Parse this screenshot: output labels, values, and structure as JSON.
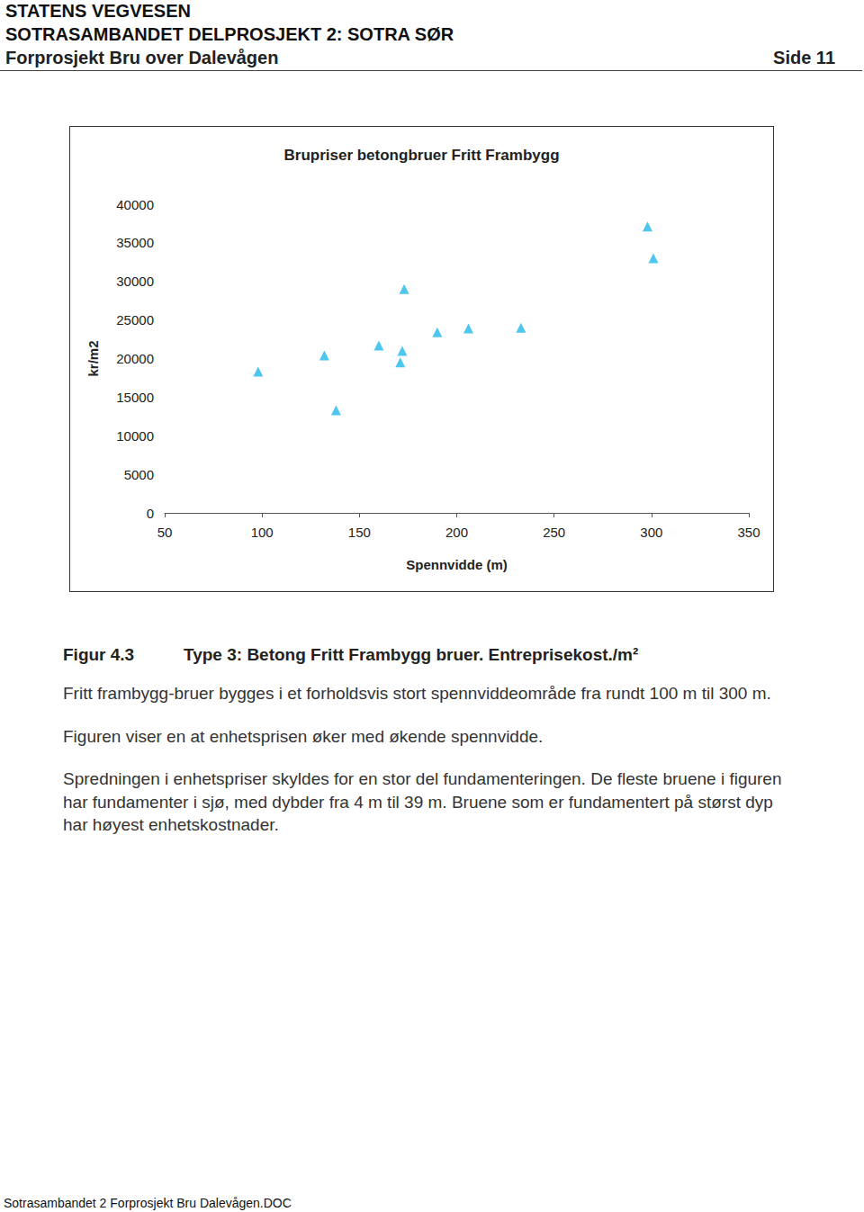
{
  "header": {
    "organization": "STATENS VEGVESEN",
    "project": "SOTRASAMBANDET DELPROSJEKT 2: SOTRA SØR",
    "document": "Forprosjekt Bru over Dalevågen",
    "page": "Side 11"
  },
  "chart_data": {
    "type": "scatter",
    "title": "Brupriser betongbruer Fritt Frambygg",
    "x_label": "Spennvidde (m)",
    "y_label": "kr/m2",
    "x": [
      98,
      132,
      138,
      160,
      173,
      172,
      171,
      190,
      206,
      233,
      298,
      301
    ],
    "values": [
      18300,
      20400,
      13300,
      21700,
      29000,
      21000,
      19500,
      23400,
      23900,
      24000,
      37100,
      33000
    ],
    "color": "#22b8e8",
    "marker": "triangle",
    "xlim": [
      50,
      350
    ],
    "xticks": [
      50,
      100,
      150,
      200,
      250,
      300,
      350
    ],
    "ylim": [
      0,
      40000
    ],
    "yticks": [
      0,
      5000,
      10000,
      15000,
      20000,
      25000,
      30000,
      35000,
      40000
    ],
    "grid": false
  },
  "caption": {
    "number": "Figur 4.3",
    "text": "Type 3: Betong Fritt Frambygg bruer. Entreprisekost./m²"
  },
  "paragraphs": [
    [
      "Fritt frambygg-bruer bygges i et forholdsvis stort spennviddeområde fra rundt 100 m til 300 m."
    ],
    [
      "Figuren viser en at enhetsprisen øker med økende spennvidde."
    ],
    [
      "Spredningen i enhetspriser skyldes for en stor del fundamenteringen. De fleste bruene i figuren",
      "har fundamenter i sjø, med dybder fra 4 m til 39 m. Bruene som er fundamentert på størst dyp",
      "har høyest enhetskostnader."
    ]
  ],
  "footer": "Sotrasambandet 2 Forprosjekt Bru Dalevågen.DOC"
}
